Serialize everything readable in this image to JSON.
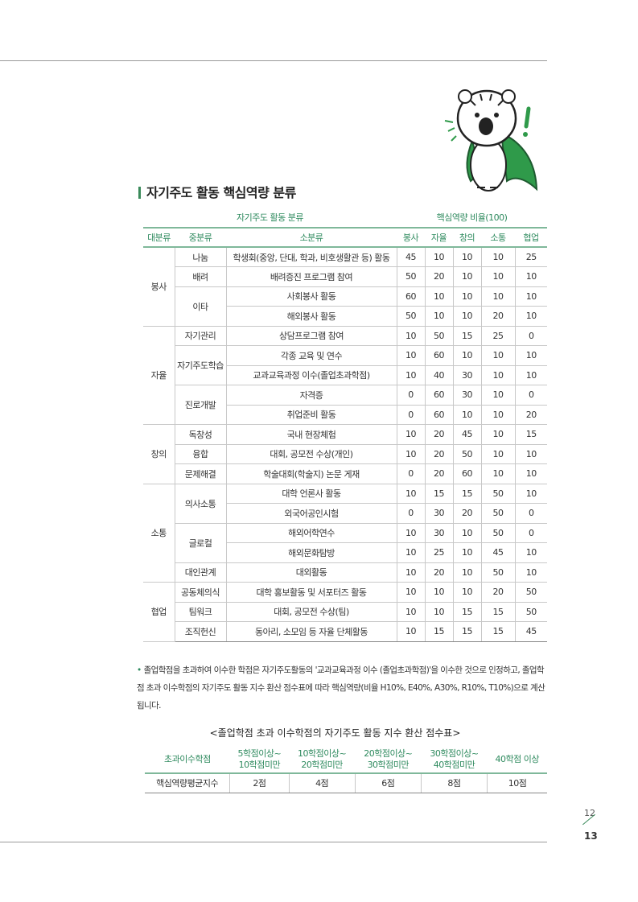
{
  "section_title": "자기주도 활동 핵심역량 분류",
  "table": {
    "group_header_left": "자기주도 활동 분류",
    "group_header_right": "핵심역량 비율(100)",
    "columns": [
      "대분류",
      "중분류",
      "소분류",
      "봉사",
      "자율",
      "창의",
      "소통",
      "협업"
    ],
    "rows": [
      {
        "major": "봉사",
        "middle": "나눔",
        "minor": "학생회(중앙, 단대, 학과, 비호생활관 등) 활동",
        "values": [
          45,
          10,
          10,
          10,
          25
        ]
      },
      {
        "major": "봉사",
        "middle": "배려",
        "minor": "배려증진 프로그램 참여",
        "values": [
          50,
          20,
          10,
          10,
          10
        ]
      },
      {
        "major": "봉사",
        "middle": "이타",
        "minor": "사회봉사 활동",
        "values": [
          60,
          10,
          10,
          10,
          10
        ]
      },
      {
        "major": "봉사",
        "middle": "이타",
        "minor": "해외봉사 활동",
        "values": [
          50,
          10,
          10,
          20,
          10
        ]
      },
      {
        "major": "자율",
        "middle": "자기관리",
        "minor": "상담프로그램 참여",
        "values": [
          10,
          50,
          15,
          25,
          0
        ]
      },
      {
        "major": "자율",
        "middle": "자기주도학습",
        "minor": "각종 교육 및 연수",
        "values": [
          10,
          60,
          10,
          10,
          10
        ]
      },
      {
        "major": "자율",
        "middle": "자기주도학습",
        "minor": "교과교육과정 이수(졸업초과학점)",
        "values": [
          10,
          40,
          30,
          10,
          10
        ]
      },
      {
        "major": "자율",
        "middle": "진로개발",
        "minor": "자격증",
        "values": [
          0,
          60,
          30,
          10,
          0
        ]
      },
      {
        "major": "자율",
        "middle": "진로개발",
        "minor": "취업준비 활동",
        "values": [
          0,
          60,
          10,
          10,
          20
        ]
      },
      {
        "major": "창의",
        "middle": "독창성",
        "minor": "국내 현장체험",
        "values": [
          10,
          20,
          45,
          10,
          15
        ]
      },
      {
        "major": "창의",
        "middle": "융합",
        "minor": "대회, 공모전 수상(개인)",
        "values": [
          10,
          20,
          50,
          10,
          10
        ]
      },
      {
        "major": "창의",
        "middle": "문제해결",
        "minor": "학술대회(학술지) 논문 게재",
        "values": [
          0,
          20,
          60,
          10,
          10
        ]
      },
      {
        "major": "소통",
        "middle": "의사소통",
        "minor": "대학 언론사 활동",
        "values": [
          10,
          15,
          15,
          50,
          10
        ]
      },
      {
        "major": "소통",
        "middle": "의사소통",
        "minor": "외국어공인시험",
        "values": [
          0,
          30,
          20,
          50,
          0
        ]
      },
      {
        "major": "소통",
        "middle": "글로컬",
        "minor": "해외어학연수",
        "values": [
          10,
          30,
          10,
          50,
          0
        ]
      },
      {
        "major": "소통",
        "middle": "글로컬",
        "minor": "해외문화탐방",
        "values": [
          10,
          25,
          10,
          45,
          10
        ]
      },
      {
        "major": "소통",
        "middle": "대인관계",
        "minor": "대외활동",
        "values": [
          10,
          20,
          10,
          50,
          10
        ]
      },
      {
        "major": "협업",
        "middle": "공동체의식",
        "minor": "대학 홍보활동 및 서포터즈 활동",
        "values": [
          10,
          10,
          10,
          20,
          50
        ]
      },
      {
        "major": "협업",
        "middle": "팀워크",
        "minor": "대회, 공모전 수상(팀)",
        "values": [
          10,
          10,
          15,
          15,
          50
        ]
      },
      {
        "major": "협업",
        "middle": "조직헌신",
        "minor": "동아리, 소모임 등 자율 단체활동",
        "values": [
          10,
          15,
          15,
          15,
          45
        ]
      }
    ]
  },
  "note": "졸업학점을 초과하여 이수한 학점은 자기주도활동의 '교과교육과정 이수 (졸업초과학점)'을 이수한 것으로 인정하고, 졸업학점 초과 이수학점의 자기주도 활동 지수 환산 점수표에 따라 핵심역량(비율 H10%, E40%, A30%, R10%, T10%)으로 계산됩니다.",
  "conversion": {
    "title": "<졸업학점 초과 이수학점의 자기주도 활동 지수 환산 점수표>",
    "header_label": "초과이수학점",
    "ranges": [
      [
        "5학점이상~",
        "10학점미만"
      ],
      [
        "10학점이상~",
        "20학점미만"
      ],
      [
        "20학점이상~",
        "30학점미만"
      ],
      [
        "30학점이상~",
        "40학점미만"
      ],
      [
        "40학점 이상",
        ""
      ]
    ],
    "row_label": "핵심역량평균지수",
    "scores": [
      "2점",
      "4점",
      "6점",
      "8점",
      "10점"
    ]
  },
  "page_numbers": {
    "left": "12",
    "right": "13"
  },
  "colors": {
    "accent": "#2e8a5e",
    "tiger_cape": "#2f9a4a"
  }
}
